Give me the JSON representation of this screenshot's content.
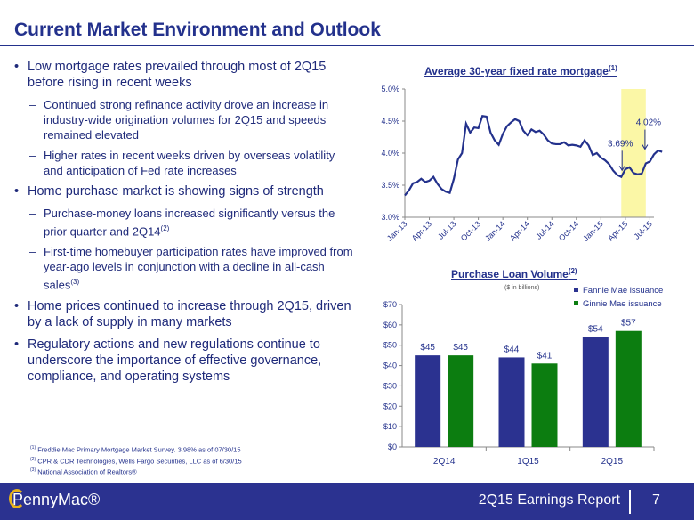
{
  "title": "Current Market Environment and Outlook",
  "bullets": [
    {
      "text": "Low mortgage rates prevailed through most of 2Q15 before rising in recent weeks",
      "subs": [
        {
          "text": "Continued strong refinance activity drove an increase in industry-wide origination volumes for 2Q15 and speeds remained elevated"
        },
        {
          "text": "Higher rates in recent weeks driven by overseas volatility and anticipation of Fed rate increases"
        }
      ]
    },
    {
      "text": "Home purchase market is showing signs of strength",
      "subs": [
        {
          "text": "Purchase-money loans increased significantly versus the prior quarter and 2Q14",
          "sup": "(2)"
        },
        {
          "text": "First-time homebuyer participation rates have improved from year-ago levels in conjunction with a decline in all-cash sales",
          "sup": "(3)"
        }
      ]
    },
    {
      "text": "Home prices continued to increase through 2Q15, driven by a lack of supply in many markets",
      "subs": []
    },
    {
      "text": "Regulatory actions and new regulations continue to underscore the importance of effective governance, compliance, and operating systems",
      "subs": []
    }
  ],
  "footnotes": [
    {
      "mark": "(1)",
      "text": "Freddie Mac Primary Mortgage Market Survey. 3.98% as of 07/30/15"
    },
    {
      "mark": "(2)",
      "text": "CPR & CDR Technologies, Wells Fargo Securities, LLC as of 6/30/15"
    },
    {
      "mark": "(3)",
      "text": "National Association of Realtors®"
    }
  ],
  "footer": {
    "logo": "PennyMac®",
    "report": "2Q15 Earnings Report",
    "page": "7"
  },
  "chart_data": [
    {
      "type": "line",
      "title": "Average 30-year fixed rate mortgage",
      "title_sup": "(1)",
      "ylim": [
        3.0,
        5.0
      ],
      "yticks": [
        "3.0%",
        "3.5%",
        "4.0%",
        "4.5%",
        "5.0%"
      ],
      "xticks": [
        "Jan-13",
        "Apr-13",
        "Jul-13",
        "Oct-13",
        "Jan-14",
        "Apr-14",
        "Jul-14",
        "Oct-14",
        "Jan-15",
        "Apr-15",
        "Jul-15"
      ],
      "x_range_months": [
        0,
        30.5
      ],
      "highlight_months": [
        26.5,
        29.5
      ],
      "annotations": [
        {
          "label": "3.69%",
          "month": 26.6,
          "value": 3.69
        },
        {
          "label": "4.02%",
          "month": 29.4,
          "value": 4.02
        }
      ],
      "series_month_step": 0.5,
      "values": [
        3.34,
        3.42,
        3.53,
        3.55,
        3.6,
        3.55,
        3.57,
        3.63,
        3.52,
        3.44,
        3.4,
        3.38,
        3.6,
        3.9,
        4.0,
        4.46,
        4.32,
        4.4,
        4.39,
        4.58,
        4.57,
        4.32,
        4.2,
        4.13,
        4.3,
        4.42,
        4.48,
        4.53,
        4.5,
        4.35,
        4.28,
        4.37,
        4.33,
        4.35,
        4.29,
        4.2,
        4.15,
        4.14,
        4.14,
        4.17,
        4.12,
        4.13,
        4.12,
        4.1,
        4.2,
        4.12,
        3.97,
        4.0,
        3.93,
        3.89,
        3.83,
        3.73,
        3.66,
        3.63,
        3.75,
        3.78,
        3.69,
        3.67,
        3.68,
        3.84,
        3.87,
        3.98,
        4.04,
        4.02
      ]
    },
    {
      "type": "bar",
      "title": "Purchase Loan Volume",
      "title_sup": "(2)",
      "subtitle": "($ in billions)",
      "ylim": [
        0,
        70
      ],
      "yticks": [
        "$0",
        "$10",
        "$20",
        "$30",
        "$40",
        "$50",
        "$60",
        "$70"
      ],
      "categories": [
        "2Q14",
        "1Q15",
        "2Q15"
      ],
      "series": [
        {
          "name": "Fannie Mae issuance",
          "color": "#2b3290",
          "values": [
            45,
            44,
            54
          ],
          "labels": [
            "$45",
            "$44",
            "$54"
          ]
        },
        {
          "name": "Ginnie Mae issuance",
          "color": "#0c7d10",
          "values": [
            45,
            41,
            57
          ],
          "labels": [
            "$45",
            "$41",
            "$57"
          ]
        }
      ]
    }
  ]
}
